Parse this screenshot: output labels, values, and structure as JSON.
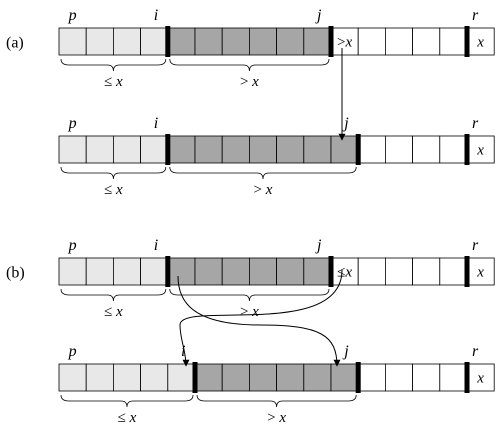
{
  "cells_per_array": 16,
  "colors": {
    "light": "#e8e8e8",
    "dark": "#a6a6a6",
    "white": "#ffffff",
    "stroke": "#000000"
  },
  "rows": [
    {
      "id": "a-before",
      "part_label": "(a)",
      "light_cells": 4,
      "dark_cells": 6,
      "bar_after_cells": [
        4,
        10,
        15
      ],
      "pointers": [
        {
          "label": "p",
          "at_cell": 0
        },
        {
          "label": "i",
          "at_bar": 4
        },
        {
          "label": "j",
          "at_bar": 10
        },
        {
          "label": "r",
          "at_cell": 15
        }
      ],
      "cell_texts": [
        {
          "cell": 10,
          "text": ">x"
        },
        {
          "cell": 15,
          "text": "x"
        }
      ],
      "braces": [
        {
          "from_cell": 0,
          "to_cell": 4,
          "label": "≤ x"
        },
        {
          "from_cell": 4,
          "to_cell": 10,
          "label": "> x"
        }
      ]
    },
    {
      "id": "a-after",
      "part_label": "",
      "light_cells": 4,
      "dark_cells": 7,
      "bar_after_cells": [
        4,
        11,
        15
      ],
      "pointers": [
        {
          "label": "p",
          "at_cell": 0
        },
        {
          "label": "i",
          "at_bar": 4
        },
        {
          "label": "j",
          "at_bar": 11
        },
        {
          "label": "r",
          "at_cell": 15
        }
      ],
      "cell_texts": [
        {
          "cell": 15,
          "text": "x"
        }
      ],
      "braces": [
        {
          "from_cell": 0,
          "to_cell": 4,
          "label": "≤ x"
        },
        {
          "from_cell": 4,
          "to_cell": 11,
          "label": "> x"
        }
      ]
    },
    {
      "id": "b-before",
      "part_label": "(b)",
      "light_cells": 4,
      "dark_cells": 6,
      "bar_after_cells": [
        4,
        10,
        15
      ],
      "pointers": [
        {
          "label": "p",
          "at_cell": 0
        },
        {
          "label": "i",
          "at_bar": 4
        },
        {
          "label": "j",
          "at_bar": 10
        },
        {
          "label": "r",
          "at_cell": 15
        }
      ],
      "cell_texts": [
        {
          "cell": 10,
          "text": "≤x"
        },
        {
          "cell": 15,
          "text": "x"
        }
      ],
      "braces": [
        {
          "from_cell": 0,
          "to_cell": 4,
          "label": "≤ x"
        },
        {
          "from_cell": 4,
          "to_cell": 10,
          "label": "> x"
        }
      ]
    },
    {
      "id": "b-after",
      "part_label": "",
      "light_cells": 5,
      "dark_cells": 6,
      "bar_after_cells": [
        5,
        11,
        15
      ],
      "pointers": [
        {
          "label": "p",
          "at_cell": 0
        },
        {
          "label": "i",
          "at_bar": 5
        },
        {
          "label": "j",
          "at_bar": 11
        },
        {
          "label": "r",
          "at_cell": 15
        }
      ],
      "cell_texts": [
        {
          "cell": 15,
          "text": "x"
        }
      ],
      "braces": [
        {
          "from_cell": 0,
          "to_cell": 5,
          "label": "≤ x"
        },
        {
          "from_cell": 5,
          "to_cell": 11,
          "label": "> x"
        }
      ]
    }
  ]
}
